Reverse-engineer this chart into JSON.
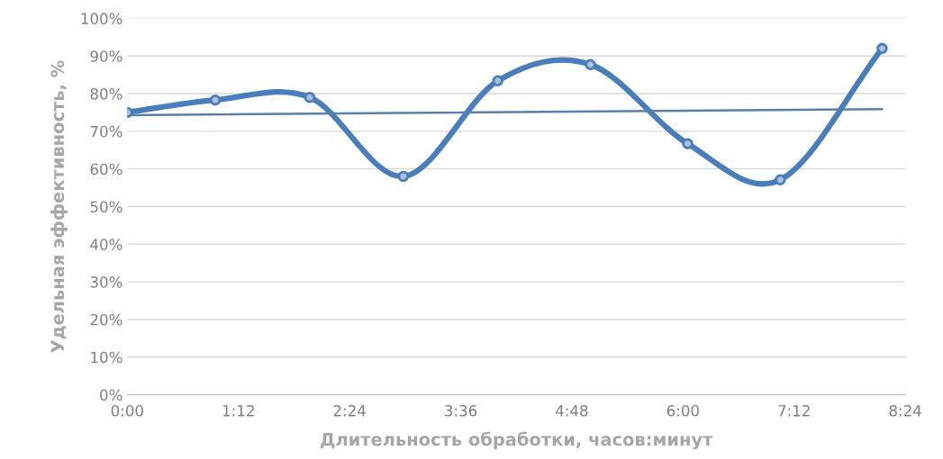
{
  "chart_data": {
    "type": "line",
    "xlabel": "Длительность обработки, часов:минут",
    "ylabel": "Удельная эффективность, %",
    "x": [
      0,
      0.95,
      1.97,
      2.98,
      4.0,
      5.0,
      6.05,
      7.05,
      8.15
    ],
    "series": [
      {
        "color": "#4a7ebb",
        "values": [
          75,
          78.3,
          79,
          58,
          83.4,
          87.7,
          66.7,
          57.1,
          92
        ],
        "marker": "circle"
      },
      {
        "type": "line",
        "color": "#5b7fa6",
        "x": [
          0,
          8.15
        ],
        "values": [
          74.3,
          75.9
        ],
        "marker": "none"
      }
    ],
    "xlim": [
      0,
      8.4
    ],
    "xticks": [
      {
        "value": 0,
        "label": "0:00"
      },
      {
        "value": 1.2,
        "label": "1:12"
      },
      {
        "value": 2.4,
        "label": "2:24"
      },
      {
        "value": 3.6,
        "label": "3:36"
      },
      {
        "value": 4.8,
        "label": "4:48"
      },
      {
        "value": 6.0,
        "label": "6:00"
      },
      {
        "value": 7.2,
        "label": "7:12"
      },
      {
        "value": 8.4,
        "label": "8:24"
      }
    ],
    "ylim": [
      0,
      100
    ],
    "yticks": [
      {
        "value": 0,
        "label": "0%"
      },
      {
        "value": 10,
        "label": "10%"
      },
      {
        "value": 20,
        "label": "20%"
      },
      {
        "value": 30,
        "label": "30%"
      },
      {
        "value": 40,
        "label": "40%"
      },
      {
        "value": 50,
        "label": "50%"
      },
      {
        "value": 60,
        "label": "60%"
      },
      {
        "value": 70,
        "label": "70%"
      },
      {
        "value": 80,
        "label": "80%"
      },
      {
        "value": 90,
        "label": "90%"
      },
      {
        "value": 100,
        "label": "100%"
      }
    ],
    "grid": "y",
    "legend": false,
    "line_style": "solid"
  }
}
